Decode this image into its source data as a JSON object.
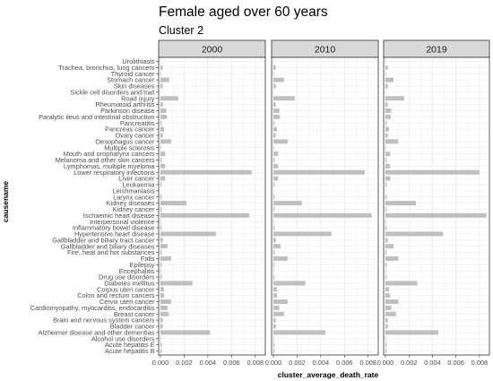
{
  "chart_data": {
    "type": "bar",
    "orientation": "horizontal",
    "title": "Female aged over 60 years",
    "subtitle": "Cluster 2",
    "xlabel": "cluster_average_death_rate",
    "ylabel": "causename",
    "xlim": [
      0,
      0.0087
    ],
    "xticks": [
      "0.000",
      "0.002",
      "0.004",
      "0.006",
      "0.008"
    ],
    "grid": true,
    "bar_color": "#bfbfbf",
    "facets": [
      "2000",
      "2010",
      "2019"
    ],
    "categories": [
      "Urolithiasis",
      "Trachea, bronchus, lung cancers",
      "Thyroid cancer",
      "Stomach cancer",
      "Skin diseases",
      "Sickle cell disorders and trait",
      "Road injury",
      "Rheumatoid arthritis",
      "Parkinson disease",
      "Paralytic ileus and intestinal obstruction",
      "Pancreatitis",
      "Pancreas cancer",
      "Ovary cancer",
      "Oesophagus cancer",
      "Multiple sclerosis",
      "Mouth and oropharynx cancers",
      "Melanoma and other skin cancers",
      "Lymphomas, multiple myeloma",
      "Lower respiratory infections",
      "Liver cancer",
      "Leukaemia",
      "Leishmaniasis",
      "Larynx cancer",
      "Kidney diseases",
      "Kidney cancer",
      "Ischaemic heart disease",
      "Interpersonal violence",
      "Inflammatory bowel disease",
      "Hypertensive heart disease",
      "Gallbladder and biliary tract cancer",
      "Gallbladder and biliary diseases",
      "Fire, heat and hot substances",
      "Falls",
      "Epilepsy",
      "Encephalitis",
      "Drug use disorders",
      "Diabetes mellitus",
      "Corpus uteri cancer",
      "Colon and rectum cancers",
      "Cervix uteri cancer",
      "Cardiomyopathy, myocarditis, endocarditis",
      "Breast cancer",
      "Brain and nervous system cancers",
      "Bladder cancer",
      "Alzheimer disease and other dementias",
      "Alcohol use disorders",
      "Acute hepatitis E",
      "Acute hepatitis B"
    ],
    "series": [
      {
        "name": "2000",
        "values": [
          2e-05,
          0.0002,
          5e-05,
          0.00075,
          0.0002,
          0.0,
          0.0015,
          0.0002,
          0.0005,
          0.00055,
          0.0001,
          0.0003,
          0.0002,
          0.0009,
          5e-05,
          0.0004,
          0.0001,
          0.0004,
          0.0077,
          0.0004,
          0.0001,
          0.0,
          0.0001,
          0.0022,
          0.0001,
          0.0075,
          5e-05,
          0.0001,
          0.0047,
          0.0002,
          0.0006,
          0.0001,
          0.0009,
          0.0001,
          5e-05,
          0.0001,
          0.0027,
          0.0003,
          0.0003,
          0.0009,
          0.0006,
          0.0007,
          0.0002,
          0.0002,
          0.0042,
          5e-05,
          0.0001,
          0.0001
        ]
      },
      {
        "name": "2010",
        "values": [
          2e-05,
          0.0002,
          5e-05,
          0.0009,
          0.0002,
          0.0,
          0.0018,
          0.0002,
          0.0005,
          0.00055,
          0.0001,
          0.0003,
          0.0002,
          0.0012,
          5e-05,
          0.0004,
          0.0001,
          0.0004,
          0.0077,
          0.0004,
          0.0001,
          0.0,
          0.0001,
          0.0024,
          0.0001,
          0.0083,
          5e-05,
          0.0001,
          0.0049,
          0.0002,
          0.0006,
          0.0001,
          0.0012,
          0.0001,
          5e-05,
          0.0001,
          0.0027,
          0.0003,
          0.0003,
          0.0012,
          0.0005,
          0.0009,
          0.0002,
          0.0002,
          0.0044,
          5e-05,
          0.0001,
          0.0001
        ]
      },
      {
        "name": "2019",
        "values": [
          2e-05,
          0.0002,
          5e-05,
          0.0007,
          0.0002,
          0.0,
          0.0016,
          0.0002,
          0.0005,
          0.00045,
          0.0001,
          0.0003,
          0.0002,
          0.0011,
          5e-05,
          0.0004,
          0.0001,
          0.0004,
          0.008,
          0.0004,
          0.0001,
          0.0,
          0.0001,
          0.0026,
          0.0001,
          0.0086,
          5e-05,
          0.0001,
          0.0049,
          0.0002,
          0.0007,
          0.0001,
          0.0011,
          0.0001,
          5e-05,
          0.0001,
          0.0027,
          0.0003,
          0.0004,
          0.0011,
          0.0005,
          0.0009,
          0.0002,
          0.0002,
          0.0045,
          5e-05,
          0.0001,
          0.0001
        ]
      }
    ]
  }
}
